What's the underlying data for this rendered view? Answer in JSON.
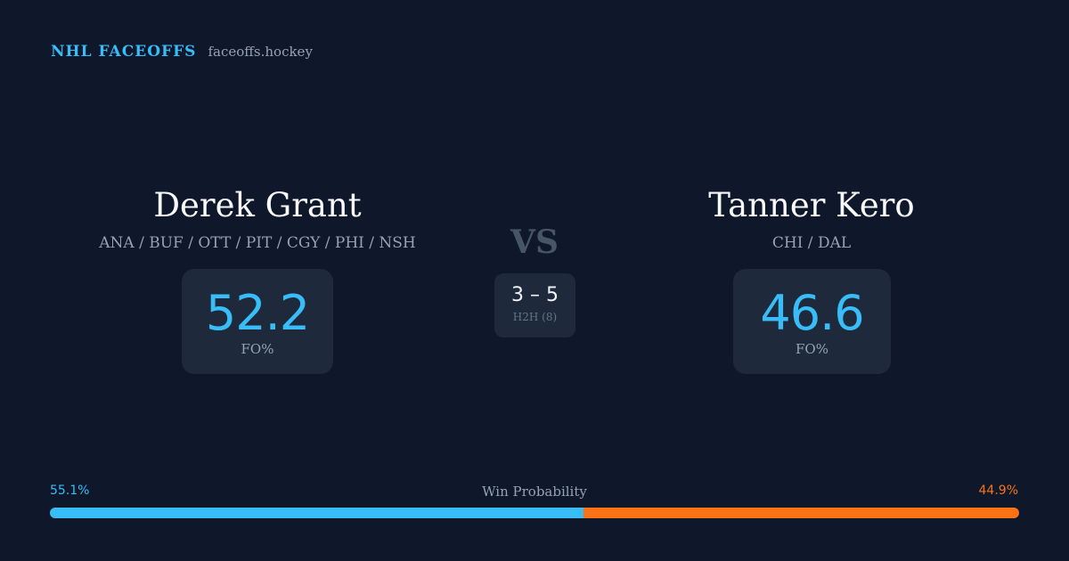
{
  "brand": {
    "name": "NHL FACEOFFS",
    "url": "faceoffs.hockey"
  },
  "player_left": {
    "name": "Derek Grant",
    "teams": "ANA / BUF / OTT / PIT / CGY / PHI / NSH",
    "stat_value": "52.2",
    "stat_label": "FO%"
  },
  "player_right": {
    "name": "Tanner Kero",
    "teams": "CHI / DAL",
    "stat_value": "46.6",
    "stat_label": "FO%"
  },
  "matchup": {
    "vs_label": "VS",
    "h2h_score": "3 – 5",
    "h2h_label": "H2H (8)"
  },
  "win_probability": {
    "title": "Win Probability",
    "left_label": "55.1%",
    "right_label": "44.9%",
    "left_fraction": 0.551,
    "right_fraction": 0.449
  },
  "colors": {
    "background": "#0f172a",
    "card": "#1e293b",
    "accent_blue": "#38bdf8",
    "accent_orange": "#f97316",
    "muted_text": "#94a3b8",
    "vs_text": "#475569"
  }
}
